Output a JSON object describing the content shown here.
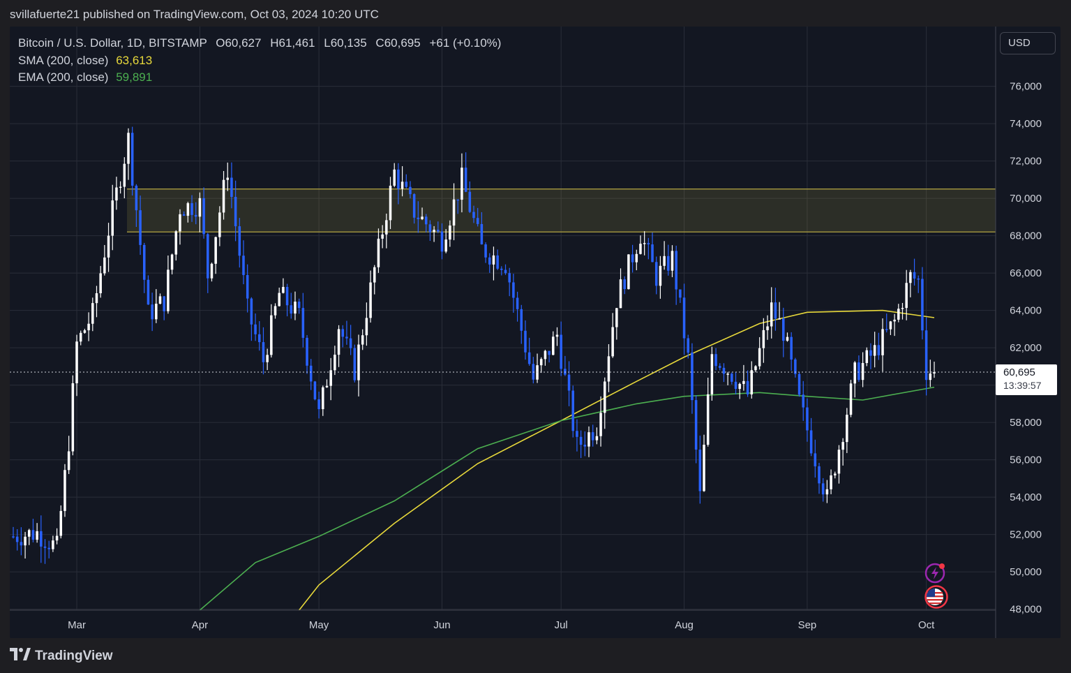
{
  "header": {
    "publish_line": "svillafuerte21 published on TradingView.com, Oct 03, 2024 10:20 UTC"
  },
  "legend": {
    "symbol": "Bitcoin / U.S. Dollar, 1D, BITSTAMP",
    "open": "O60,627",
    "high": "H61,461",
    "low": "L60,135",
    "close": "C60,695",
    "change": "+61 (+0.10%)",
    "sma_label": "SMA (200, close)",
    "sma_value": "63,613",
    "ema_label": "EMA (200, close)",
    "ema_value": "59,891"
  },
  "currency_button": "USD",
  "last_price": {
    "value": "60,695",
    "countdown": "13:39:57"
  },
  "footer": {
    "brand": "TradingView"
  },
  "colors": {
    "background": "#131722",
    "up_candle": "#ffffff",
    "down_candle": "#2962ff",
    "sma": "#e8d93b",
    "ema": "#4caf50",
    "zone_border": "#b5a642"
  },
  "icons": [
    "lightning-icon",
    "us-flag-icon",
    "tradingview-logo-icon"
  ],
  "chart_data": {
    "type": "candlestick",
    "title": "Bitcoin / U.S. Dollar, 1D, BITSTAMP",
    "y_ticks": [
      76000,
      74000,
      72000,
      70000,
      68000,
      66000,
      64000,
      62000,
      60000,
      58000,
      56000,
      54000,
      52000,
      50000,
      48000
    ],
    "ylim": [
      47950,
      79200
    ],
    "x_axis_labels": [
      {
        "label": "Mar",
        "date": "2024-03-01"
      },
      {
        "label": "Apr",
        "date": "2024-04-01"
      },
      {
        "label": "May",
        "date": "2024-05-01"
      },
      {
        "label": "Jun",
        "date": "2024-06-01"
      },
      {
        "label": "Jul",
        "date": "2024-07-01"
      },
      {
        "label": "Aug",
        "date": "2024-08-01"
      },
      {
        "label": "Sep",
        "date": "2024-09-01"
      },
      {
        "label": "Oct",
        "date": "2024-10-01"
      }
    ],
    "date_range": [
      "2024-02-14",
      "2024-10-03"
    ],
    "resistance_zone": [
      68200,
      70500
    ],
    "last_price_line": 60695,
    "close_series": [
      {
        "date": "2024-02-14",
        "close": 51900
      },
      {
        "date": "2024-02-20",
        "close": 52100
      },
      {
        "date": "2024-02-25",
        "close": 51300
      },
      {
        "date": "2024-02-28",
        "close": 57000
      },
      {
        "date": "2024-03-01",
        "close": 62200
      },
      {
        "date": "2024-03-05",
        "close": 63800
      },
      {
        "date": "2024-03-09",
        "close": 68300
      },
      {
        "date": "2024-03-14",
        "close": 73200
      },
      {
        "date": "2024-03-19",
        "close": 63800
      },
      {
        "date": "2024-03-23",
        "close": 64500
      },
      {
        "date": "2024-03-27",
        "close": 69500
      },
      {
        "date": "2024-04-01",
        "close": 69700
      },
      {
        "date": "2024-04-03",
        "close": 65900
      },
      {
        "date": "2024-04-08",
        "close": 71600
      },
      {
        "date": "2024-04-13",
        "close": 64000
      },
      {
        "date": "2024-04-17",
        "close": 61300
      },
      {
        "date": "2024-04-21",
        "close": 64900
      },
      {
        "date": "2024-04-26",
        "close": 63700
      },
      {
        "date": "2024-05-01",
        "close": 58400
      },
      {
        "date": "2024-05-06",
        "close": 63200
      },
      {
        "date": "2024-05-10",
        "close": 60800
      },
      {
        "date": "2024-05-15",
        "close": 66200
      },
      {
        "date": "2024-05-20",
        "close": 71400
      },
      {
        "date": "2024-05-25",
        "close": 69300
      },
      {
        "date": "2024-06-01",
        "close": 67800
      },
      {
        "date": "2024-06-06",
        "close": 71000
      },
      {
        "date": "2024-06-11",
        "close": 67300
      },
      {
        "date": "2024-06-17",
        "close": 66500
      },
      {
        "date": "2024-06-24",
        "close": 60300
      },
      {
        "date": "2024-06-30",
        "close": 62700
      },
      {
        "date": "2024-07-05",
        "close": 56700
      },
      {
        "date": "2024-07-10",
        "close": 57800
      },
      {
        "date": "2024-07-15",
        "close": 64600
      },
      {
        "date": "2024-07-21",
        "close": 68100
      },
      {
        "date": "2024-07-25",
        "close": 65800
      },
      {
        "date": "2024-07-29",
        "close": 66800
      },
      {
        "date": "2024-08-02",
        "close": 61400
      },
      {
        "date": "2024-08-05",
        "close": 54000
      },
      {
        "date": "2024-08-08",
        "close": 61700
      },
      {
        "date": "2024-08-13",
        "close": 60600
      },
      {
        "date": "2024-08-17",
        "close": 59500
      },
      {
        "date": "2024-08-23",
        "close": 64100
      },
      {
        "date": "2024-08-26",
        "close": 62900
      },
      {
        "date": "2024-08-30",
        "close": 59100
      },
      {
        "date": "2024-09-06",
        "close": 53900
      },
      {
        "date": "2024-09-10",
        "close": 57600
      },
      {
        "date": "2024-09-13",
        "close": 60600
      },
      {
        "date": "2024-09-18",
        "close": 61800
      },
      {
        "date": "2024-09-23",
        "close": 63400
      },
      {
        "date": "2024-09-27",
        "close": 65800
      },
      {
        "date": "2024-09-29",
        "close": 65600
      },
      {
        "date": "2024-10-01",
        "close": 60800
      },
      {
        "date": "2024-10-03",
        "close": 60695
      }
    ],
    "sma_200": [
      {
        "date": "2024-04-26",
        "value": 47950
      },
      {
        "date": "2024-05-01",
        "value": 49300
      },
      {
        "date": "2024-05-20",
        "value": 52600
      },
      {
        "date": "2024-06-10",
        "value": 55800
      },
      {
        "date": "2024-07-01",
        "value": 58100
      },
      {
        "date": "2024-07-20",
        "value": 60200
      },
      {
        "date": "2024-08-01",
        "value": 61500
      },
      {
        "date": "2024-08-20",
        "value": 63300
      },
      {
        "date": "2024-09-01",
        "value": 63900
      },
      {
        "date": "2024-09-20",
        "value": 64000
      },
      {
        "date": "2024-10-03",
        "value": 63613
      }
    ],
    "ema_200": [
      {
        "date": "2024-04-01",
        "value": 47950
      },
      {
        "date": "2024-04-15",
        "value": 50500
      },
      {
        "date": "2024-05-01",
        "value": 51900
      },
      {
        "date": "2024-05-20",
        "value": 53800
      },
      {
        "date": "2024-06-10",
        "value": 56600
      },
      {
        "date": "2024-07-01",
        "value": 58100
      },
      {
        "date": "2024-07-20",
        "value": 59000
      },
      {
        "date": "2024-08-01",
        "value": 59400
      },
      {
        "date": "2024-08-20",
        "value": 59600
      },
      {
        "date": "2024-09-01",
        "value": 59400
      },
      {
        "date": "2024-09-15",
        "value": 59200
      },
      {
        "date": "2024-10-03",
        "value": 59891
      }
    ]
  }
}
